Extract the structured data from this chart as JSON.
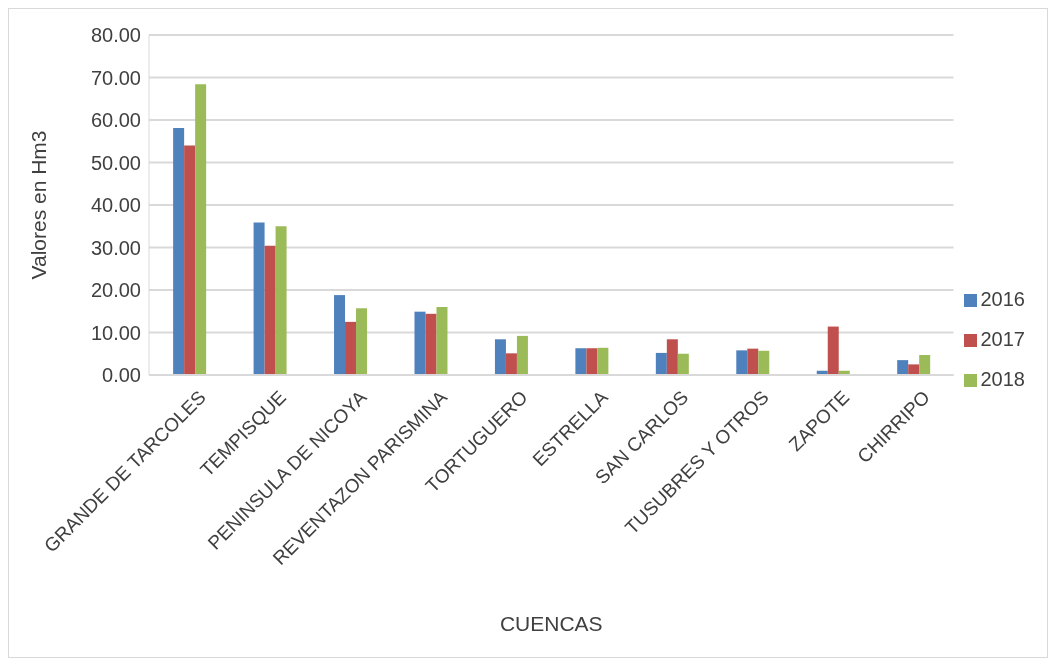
{
  "chart_data": {
    "type": "bar",
    "xlabel": "CUENCAS",
    "ylabel": "Valores en Hm3",
    "categories": [
      "GRANDE DE TARCOLES",
      "TEMPISQUE",
      "PENINSULA DE NICOYA",
      "REVENTAZON PARISMINA",
      "TORTUGUERO",
      "ESTRELLA",
      "SAN CARLOS",
      "TUSUBRES Y OTROS",
      "ZAPOTE",
      "CHIRRIPO"
    ],
    "series": [
      {
        "name": "2016",
        "color": "#4f81bd",
        "values": [
          58.1,
          35.9,
          18.8,
          14.9,
          8.4,
          6.3,
          5.2,
          5.8,
          1.0,
          3.5
        ]
      },
      {
        "name": "2017",
        "color": "#c0504d",
        "values": [
          54.0,
          30.4,
          12.5,
          14.4,
          5.1,
          6.3,
          8.4,
          6.2,
          11.4,
          2.5
        ]
      },
      {
        "name": "2018",
        "color": "#9bbb59",
        "values": [
          68.4,
          35.0,
          15.7,
          16.0,
          9.2,
          6.4,
          5.0,
          5.7,
          1.0,
          4.7
        ]
      }
    ],
    "ylim": [
      0,
      80
    ],
    "yticks": [
      {
        "value": 0,
        "label": "0.00"
      },
      {
        "value": 10,
        "label": "10.00"
      },
      {
        "value": 20,
        "label": "20.00"
      },
      {
        "value": 30,
        "label": "30.00"
      },
      {
        "value": 40,
        "label": "40.00"
      },
      {
        "value": 50,
        "label": "50.00"
      },
      {
        "value": 60,
        "label": "60.00"
      },
      {
        "value": 70,
        "label": "70.00"
      },
      {
        "value": 80,
        "label": "80.00"
      }
    ],
    "grid": "y",
    "legend": "right"
  }
}
